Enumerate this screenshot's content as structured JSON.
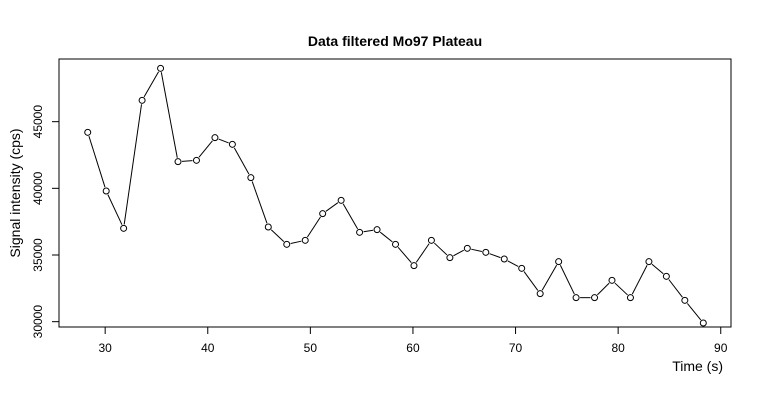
{
  "chart_data": {
    "type": "line",
    "title": "Data filtered Mo97 Plateau",
    "xlabel": "Time (s)",
    "ylabel": "Signal intensity (cps)",
    "xlim": [
      25.5,
      91
    ],
    "ylim": [
      29600,
      49700
    ],
    "xticks": [
      30,
      40,
      50,
      60,
      70,
      80,
      90
    ],
    "yticks": [
      30000,
      35000,
      40000,
      45000
    ],
    "xtick_labels": [
      "30",
      "40",
      "50",
      "60",
      "70",
      "80",
      "90"
    ],
    "ytick_labels": [
      "30000",
      "35000",
      "40000",
      "45000"
    ],
    "markers": "open-circle",
    "grid": false,
    "x": [
      28.3,
      30.1,
      31.8,
      33.6,
      35.4,
      37.1,
      38.9,
      40.7,
      42.4,
      44.2,
      45.9,
      47.7,
      49.5,
      51.2,
      53.0,
      54.8,
      56.5,
      58.3,
      60.1,
      61.8,
      63.6,
      65.3,
      67.1,
      68.9,
      70.6,
      72.4,
      74.2,
      75.9,
      77.7,
      79.4,
      81.2,
      83.0,
      84.7,
      86.5,
      88.3
    ],
    "y": [
      44200,
      39800,
      37000,
      46600,
      49000,
      42000,
      42100,
      43800,
      43300,
      40800,
      37100,
      35800,
      36100,
      38100,
      39100,
      36700,
      36900,
      35800,
      34200,
      36100,
      34800,
      35500,
      35200,
      34700,
      34000,
      32100,
      34500,
      31800,
      31800,
      33100,
      31800,
      34500,
      33400,
      31600,
      29900
    ]
  }
}
